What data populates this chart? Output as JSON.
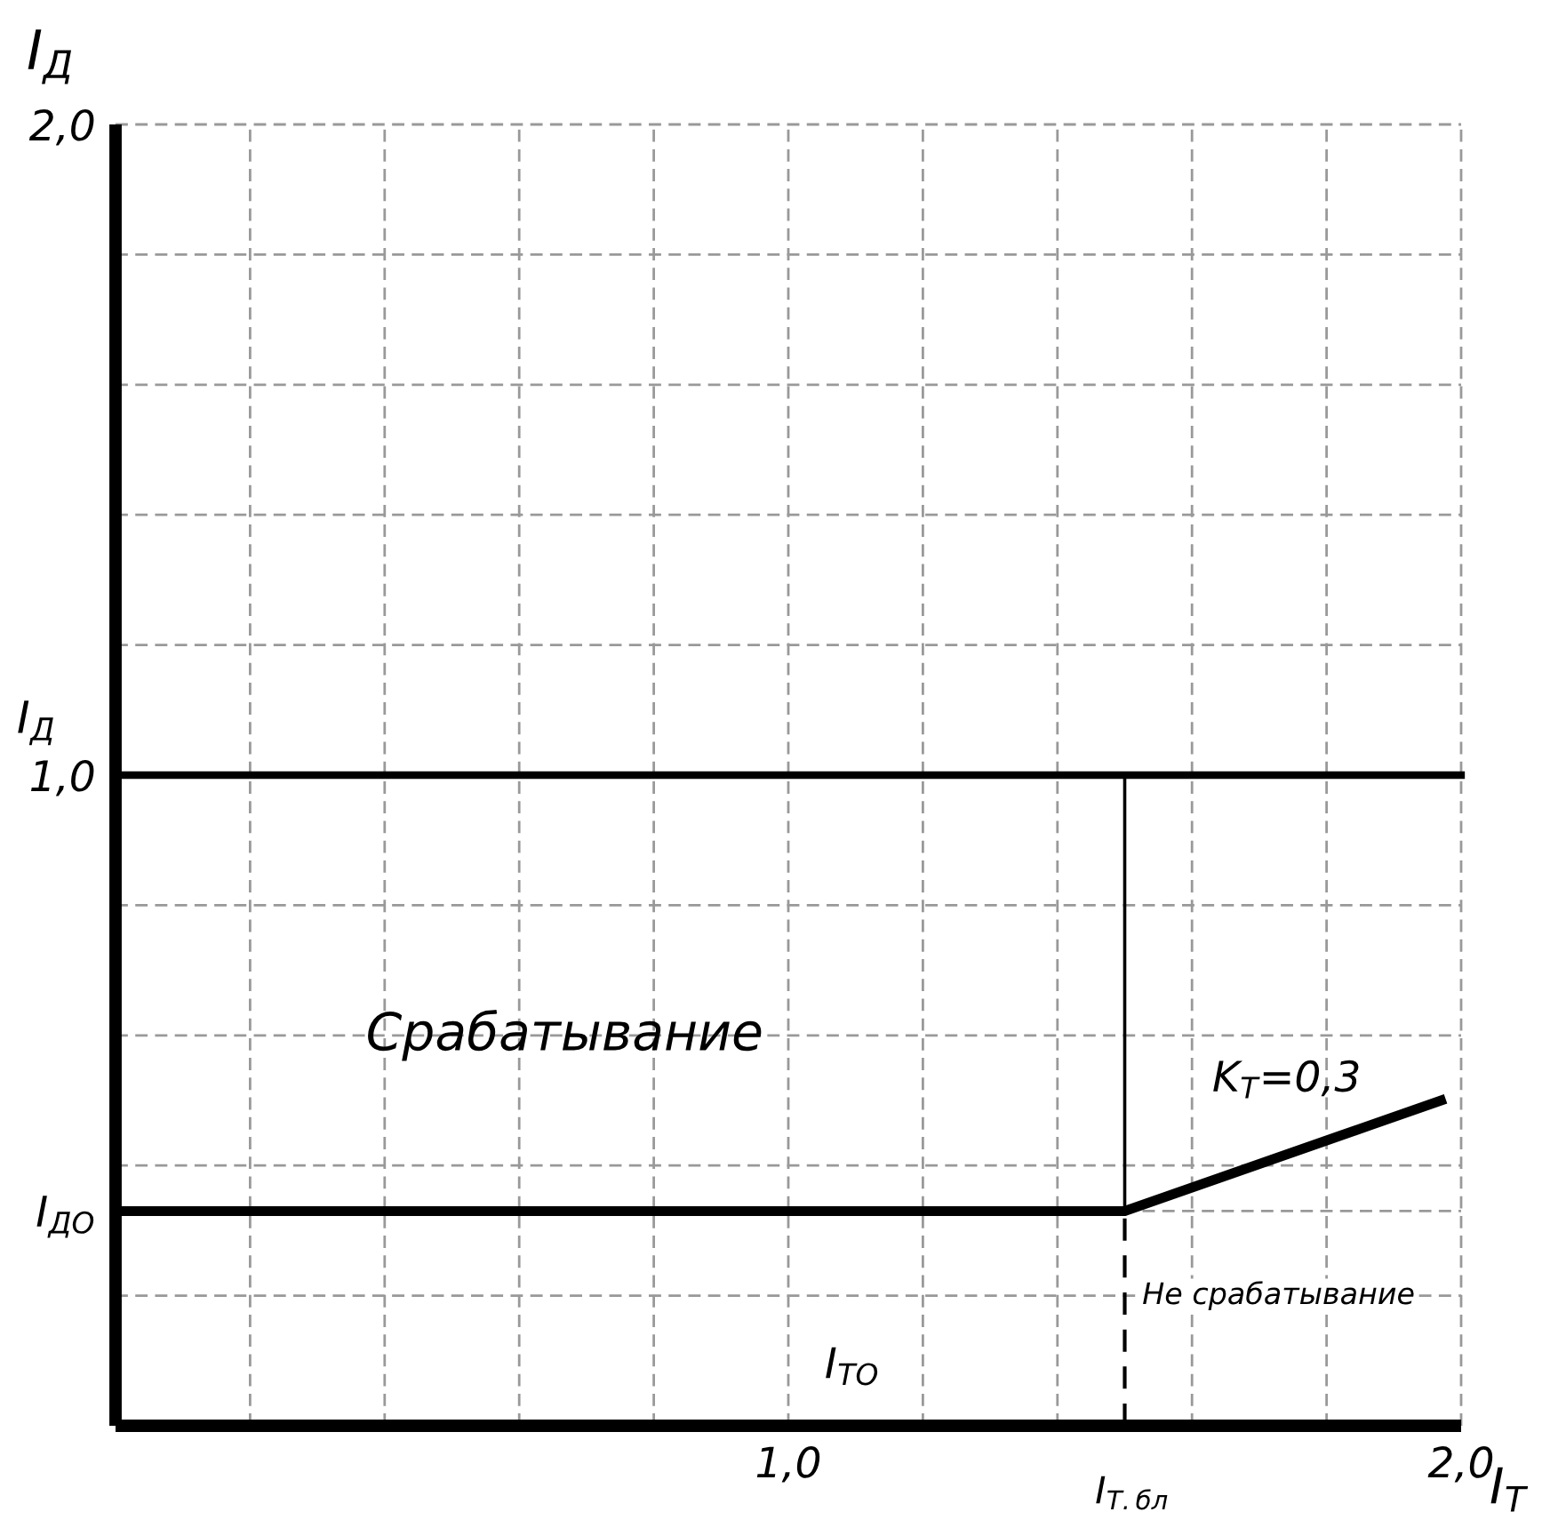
{
  "chart_data": {
    "type": "line",
    "xlabel": "I$_{Т}$",
    "ylabel": "I$_{Д}$",
    "xlim": [
      0,
      2.0
    ],
    "ylim": [
      0,
      2.0
    ],
    "xticks": [
      {
        "value": 0.2,
        "label": null
      },
      {
        "value": 0.4,
        "label": null
      },
      {
        "value": 0.6,
        "label": null
      },
      {
        "value": 0.8,
        "label": null
      },
      {
        "value": 1.0,
        "label": "1,0"
      },
      {
        "value": 1.2,
        "label": null
      },
      {
        "value": 1.4,
        "label": null
      },
      {
        "value": 1.6,
        "label": null
      },
      {
        "value": 1.8,
        "label": null
      },
      {
        "value": 2.0,
        "label": "2,0"
      }
    ],
    "yticks": [
      {
        "value": 0.2,
        "label": null
      },
      {
        "value": 0.33,
        "label": "I$_{ДО}$"
      },
      {
        "value": 0.4,
        "label": null
      },
      {
        "value": 0.6,
        "label": null
      },
      {
        "value": 0.8,
        "label": null
      },
      {
        "value": 1.0,
        "label": "1,0"
      },
      {
        "value": 1.2,
        "label": null
      },
      {
        "value": 1.4,
        "label": null
      },
      {
        "value": 1.6,
        "label": null
      },
      {
        "value": 1.8,
        "label": null
      },
      {
        "value": 2.0,
        "label": "2,0"
      }
    ],
    "grid": true,
    "marker": "none",
    "line_style": "solid",
    "series": [
      {
        "color": "#000000",
        "x": [
          0,
          2.0
        ],
        "values": [
          1.0,
          1.0
        ]
      },
      {
        "color": "#000000",
        "x": [
          0,
          1.5,
          1.97
        ],
        "values": [
          0.33,
          0.33,
          0.5
        ]
      },
      {
        "color": "#000000",
        "x": [
          1.5,
          1.5
        ],
        "values": [
          0.33,
          1.0
        ]
      },
      {
        "color": "#000000",
        "x": [
          1.5,
          1.5
        ],
        "values": [
          0,
          0.33
        ],
        "line_style": "dashed"
      }
    ],
    "annotations": [
      {
        "text": "I$_{Д}$",
        "x": 0,
        "y": 1.0
      },
      "I$_{ТО}$",
      {
        "text": "I$_{Т.бл}$",
        "x": 1.5,
        "y": 0
      },
      "Срабатывание",
      "K$_{Т}$=0,3",
      "Не срабатывание"
    ]
  }
}
